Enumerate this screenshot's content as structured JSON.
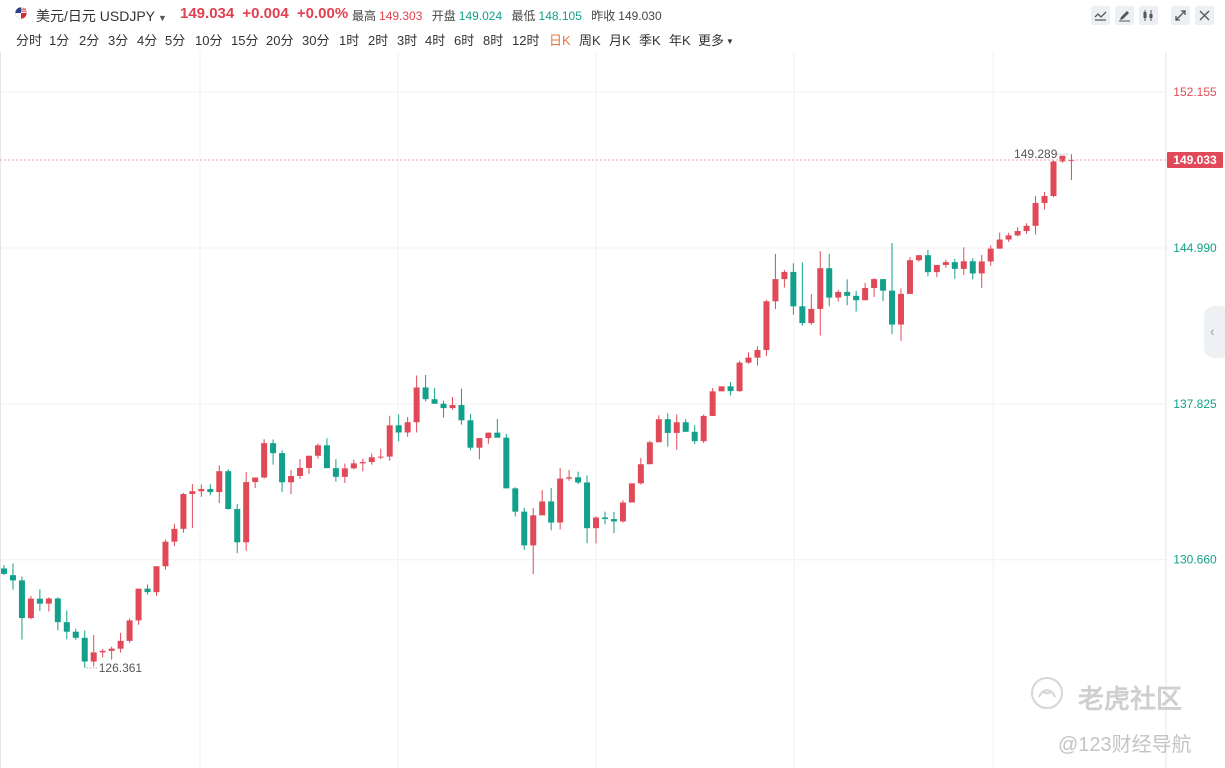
{
  "header": {
    "pair_name": "美元/日元 USDJPY",
    "last_price": "149.034",
    "change": "+0.004",
    "change_pct": "+0.00%",
    "stats": [
      {
        "label": "最高",
        "value": "149.303",
        "tone": "up"
      },
      {
        "label": "开盘",
        "value": "149.024",
        "tone": "dn"
      },
      {
        "label": "最低",
        "value": "148.105",
        "tone": "dn"
      },
      {
        "label": "昨收",
        "value": "149.030",
        "tone": "gr"
      }
    ],
    "tools": [
      {
        "name": "indicator-icon"
      },
      {
        "name": "draw-pen-icon"
      },
      {
        "name": "candle-type-icon"
      },
      {
        "name": "fullscreen-icon"
      },
      {
        "name": "close-icon"
      }
    ]
  },
  "timeframes": {
    "items": [
      "分时",
      "1分",
      "2分",
      "3分",
      "4分",
      "5分",
      "10分",
      "15分",
      "20分",
      "30分",
      "1时",
      "2时",
      "3时",
      "4时",
      "6时",
      "8时",
      "12时",
      "日K",
      "周K",
      "月K",
      "季K",
      "年K",
      "更多"
    ],
    "active": "日K"
  },
  "chart_data": {
    "type": "candlestick",
    "y_ticks": [
      "152.155",
      "144.990",
      "137.825",
      "130.660"
    ],
    "ylim": [
      123.2,
      154.0
    ],
    "current_price": "149.033",
    "high_label": "149.289",
    "low_label": "126.361",
    "colors": {
      "up": "#e04a58",
      "down": "#12a08a",
      "grid": "#f0f0f0",
      "current_line": "#e8aab0"
    },
    "candles": [
      [
        130.26,
        130.41,
        129.95,
        130.01
      ],
      [
        129.95,
        130.49,
        129.28,
        129.71
      ],
      [
        129.71,
        129.89,
        126.99,
        127.98
      ],
      [
        127.98,
        128.99,
        127.92,
        128.87
      ],
      [
        128.87,
        129.3,
        128.3,
        128.64
      ],
      [
        128.64,
        128.93,
        128.28,
        128.88
      ],
      [
        128.88,
        128.93,
        127.41,
        127.79
      ],
      [
        127.79,
        128.33,
        127.0,
        127.35
      ],
      [
        127.35,
        127.48,
        126.98,
        127.07
      ],
      [
        127.07,
        127.4,
        125.69,
        125.98
      ],
      [
        125.98,
        127.2,
        125.76,
        126.4
      ],
      [
        126.4,
        126.55,
        126.17,
        126.47
      ],
      [
        126.47,
        126.66,
        126.07,
        126.57
      ],
      [
        126.57,
        127.3,
        126.39,
        126.93
      ],
      [
        126.93,
        127.96,
        126.84,
        127.87
      ],
      [
        127.87,
        129.31,
        127.67,
        129.33
      ],
      [
        129.33,
        129.52,
        129.05,
        129.17
      ],
      [
        129.17,
        130.25,
        129.0,
        130.36
      ],
      [
        130.36,
        131.58,
        130.21,
        131.49
      ],
      [
        131.49,
        132.31,
        131.29,
        132.08
      ],
      [
        132.08,
        133.73,
        131.9,
        133.68
      ],
      [
        133.68,
        134.14,
        132.11,
        133.81
      ],
      [
        133.81,
        134.12,
        133.55,
        133.91
      ],
      [
        133.91,
        134.13,
        133.62,
        133.77
      ],
      [
        133.77,
        134.99,
        133.27,
        134.73
      ],
      [
        134.73,
        134.82,
        132.96,
        132.99
      ],
      [
        132.99,
        133.22,
        130.96,
        131.46
      ],
      [
        131.46,
        134.69,
        131.07,
        134.23
      ],
      [
        134.23,
        134.34,
        133.96,
        134.44
      ],
      [
        134.44,
        136.2,
        134.39,
        136.02
      ],
      [
        136.02,
        136.19,
        135.03,
        135.56
      ],
      [
        135.56,
        135.69,
        133.77,
        134.22
      ],
      [
        134.22,
        134.79,
        133.68,
        134.51
      ],
      [
        134.51,
        135.29,
        134.38,
        134.88
      ],
      [
        134.88,
        135.24,
        134.6,
        135.44
      ],
      [
        135.44,
        136.0,
        135.31,
        135.92
      ],
      [
        135.92,
        136.24,
        134.92,
        134.87
      ],
      [
        134.87,
        135.28,
        134.25,
        134.47
      ],
      [
        134.47,
        135.08,
        134.19,
        134.86
      ],
      [
        134.86,
        135.26,
        134.82,
        135.09
      ],
      [
        135.09,
        135.31,
        134.72,
        135.15
      ],
      [
        135.15,
        135.54,
        135.03,
        135.37
      ],
      [
        135.37,
        135.76,
        135.28,
        135.4
      ],
      [
        135.4,
        137.28,
        135.21,
        136.84
      ],
      [
        136.84,
        137.34,
        136.11,
        136.51
      ],
      [
        136.51,
        137.22,
        136.31,
        136.98
      ],
      [
        136.98,
        139.13,
        136.51,
        138.58
      ],
      [
        138.58,
        139.15,
        137.93,
        138.04
      ],
      [
        138.04,
        138.55,
        137.95,
        137.83
      ],
      [
        137.83,
        137.97,
        137.2,
        137.63
      ],
      [
        137.63,
        138.14,
        137.56,
        137.77
      ],
      [
        137.77,
        138.52,
        136.87,
        137.07
      ],
      [
        137.07,
        137.36,
        135.69,
        135.81
      ],
      [
        135.81,
        136.16,
        135.27,
        136.25
      ],
      [
        136.25,
        136.37,
        135.99,
        136.5
      ],
      [
        136.5,
        137.13,
        136.39,
        136.27
      ],
      [
        136.27,
        136.44,
        133.98,
        133.94
      ],
      [
        133.94,
        133.99,
        132.65,
        132.87
      ],
      [
        132.87,
        133.05,
        131.11,
        131.32
      ],
      [
        131.32,
        133.04,
        130.0,
        132.7
      ],
      [
        132.7,
        133.86,
        132.71,
        133.34
      ],
      [
        133.34,
        133.96,
        132.01,
        132.37
      ],
      [
        132.37,
        134.88,
        132.05,
        134.39
      ],
      [
        134.39,
        134.79,
        134.29,
        134.45
      ],
      [
        134.45,
        134.71,
        134.14,
        134.21
      ],
      [
        134.21,
        134.53,
        131.42,
        132.11
      ],
      [
        132.11,
        132.66,
        131.41,
        132.6
      ],
      [
        132.6,
        132.87,
        132.29,
        132.53
      ],
      [
        132.53,
        132.86,
        131.88,
        132.42
      ],
      [
        132.42,
        133.39,
        132.37,
        133.29
      ],
      [
        133.29,
        134.09,
        133.36,
        134.17
      ],
      [
        134.17,
        135.34,
        134.12,
        135.05
      ],
      [
        135.05,
        136.13,
        135.1,
        136.06
      ],
      [
        136.06,
        137.3,
        136.06,
        137.12
      ],
      [
        137.12,
        137.39,
        135.86,
        136.49
      ],
      [
        136.49,
        137.34,
        135.71,
        136.98
      ],
      [
        136.98,
        137.12,
        136.6,
        136.54
      ],
      [
        136.54,
        136.84,
        135.97,
        136.11
      ],
      [
        136.11,
        137.34,
        136.02,
        137.27
      ],
      [
        137.27,
        138.55,
        137.33,
        138.4
      ],
      [
        138.4,
        138.6,
        138.44,
        138.63
      ],
      [
        138.63,
        138.83,
        138.21,
        138.41
      ],
      [
        138.41,
        139.8,
        138.38,
        139.72
      ],
      [
        139.72,
        140.19,
        139.67,
        139.95
      ],
      [
        139.95,
        140.47,
        139.59,
        140.3
      ],
      [
        140.3,
        142.61,
        140.03,
        142.54
      ],
      [
        142.54,
        144.72,
        142.18,
        143.56
      ],
      [
        143.56,
        143.98,
        143.17,
        143.89
      ],
      [
        143.89,
        144.29,
        141.93,
        142.31
      ],
      [
        142.31,
        144.33,
        141.42,
        141.54
      ],
      [
        141.54,
        142.87,
        141.45,
        142.19
      ],
      [
        142.19,
        144.84,
        140.97,
        144.06
      ],
      [
        144.06,
        144.72,
        142.31,
        142.71
      ],
      [
        142.71,
        143.06,
        142.52,
        142.97
      ],
      [
        142.97,
        143.55,
        142.36,
        142.79
      ],
      [
        142.79,
        143.02,
        142.07,
        142.59
      ],
      [
        142.59,
        143.39,
        142.67,
        143.15
      ],
      [
        143.15,
        143.6,
        142.74,
        143.56
      ],
      [
        143.56,
        143.51,
        142.55,
        143.03
      ],
      [
        143.03,
        145.22,
        141.02,
        141.47
      ],
      [
        141.47,
        143.13,
        140.72,
        142.88
      ],
      [
        142.88,
        144.58,
        142.93,
        144.43
      ],
      [
        144.43,
        144.63,
        144.36,
        144.66
      ],
      [
        144.66,
        144.9,
        143.69,
        143.88
      ],
      [
        143.88,
        144.14,
        143.65,
        144.21
      ],
      [
        144.21,
        144.45,
        144.08,
        144.34
      ],
      [
        144.34,
        144.49,
        143.58,
        144.03
      ],
      [
        144.03,
        145.02,
        143.76,
        144.38
      ],
      [
        144.38,
        144.52,
        143.55,
        143.82
      ],
      [
        143.82,
        144.67,
        143.15,
        144.37
      ],
      [
        144.37,
        145.11,
        144.17,
        144.96
      ],
      [
        144.96,
        145.7,
        144.96,
        145.38
      ],
      [
        145.38,
        145.69,
        145.27,
        145.57
      ],
      [
        145.57,
        145.95,
        145.53,
        145.77
      ],
      [
        145.77,
        146.13,
        145.64,
        146.01
      ],
      [
        146.01,
        147.38,
        145.61,
        147.06
      ],
      [
        147.06,
        147.57,
        146.76,
        147.38
      ],
      [
        147.38,
        149.03,
        147.33,
        148.97
      ],
      [
        148.97,
        149.12,
        148.91,
        149.23
      ],
      [
        149.02,
        149.3,
        148.11,
        149.03
      ]
    ]
  },
  "watermark": {
    "brand": "老虎社区",
    "handle": "@123财经导航"
  }
}
